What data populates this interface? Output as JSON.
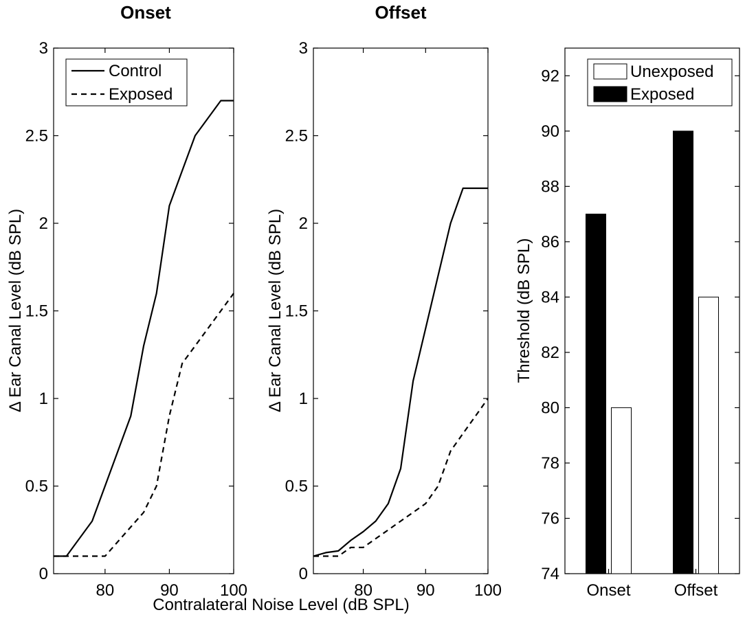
{
  "figure": {
    "shared_xlabel": "Contralateral Noise Level (dB SPL)"
  },
  "chart_data": [
    {
      "id": "onset",
      "type": "line",
      "title": "Onset",
      "xlabel": "",
      "ylabel": "Δ Ear Canal Level (dB SPL)",
      "xlim": [
        72,
        100
      ],
      "ylim": [
        0,
        3
      ],
      "xticks": [
        80,
        90,
        100
      ],
      "yticks": [
        0,
        0.5,
        1,
        1.5,
        2,
        2.5,
        3
      ],
      "ytick_labels": [
        "0",
        "0.5",
        "1",
        "1.5",
        "2",
        "2.5",
        "3"
      ],
      "legend": {
        "position": "top-left",
        "entries": [
          "Control",
          "Exposed"
        ]
      },
      "series": [
        {
          "name": "Control",
          "style": "solid",
          "x": [
            72,
            74,
            78,
            84,
            86,
            88,
            90,
            92,
            94,
            96,
            98,
            100
          ],
          "y": [
            0.1,
            0.1,
            0.3,
            0.9,
            1.3,
            1.6,
            2.1,
            2.3,
            2.5,
            2.6,
            2.7,
            2.7
          ]
        },
        {
          "name": "Exposed",
          "style": "dashed",
          "x": [
            72,
            80,
            86,
            88,
            90,
            92,
            94,
            96,
            98,
            100
          ],
          "y": [
            0.1,
            0.1,
            0.35,
            0.5,
            0.9,
            1.2,
            1.3,
            1.4,
            1.5,
            1.6
          ]
        }
      ]
    },
    {
      "id": "offset",
      "type": "line",
      "title": "Offset",
      "xlabel": "",
      "ylabel": "Δ Ear Canal Level (dB SPL)",
      "xlim": [
        72,
        100
      ],
      "ylim": [
        0,
        3
      ],
      "xticks": [
        80,
        90,
        100
      ],
      "yticks": [
        0,
        0.5,
        1,
        1.5,
        2,
        2.5,
        3
      ],
      "ytick_labels": [
        "0",
        "0.5",
        "1",
        "1.5",
        "2",
        "2.5",
        "3"
      ],
      "series": [
        {
          "name": "Control",
          "style": "solid",
          "x": [
            72,
            74,
            76,
            78,
            80,
            82,
            84,
            86,
            88,
            90,
            92,
            94,
            96,
            98,
            100
          ],
          "y": [
            0.1,
            0.12,
            0.13,
            0.19,
            0.24,
            0.3,
            0.4,
            0.6,
            1.1,
            1.4,
            1.7,
            2.0,
            2.2,
            2.2,
            2.2
          ]
        },
        {
          "name": "Exposed",
          "style": "dashed",
          "x": [
            72,
            74,
            76,
            78,
            80,
            82,
            84,
            86,
            88,
            90,
            92,
            94,
            96,
            98,
            100
          ],
          "y": [
            0.1,
            0.1,
            0.1,
            0.15,
            0.15,
            0.2,
            0.25,
            0.3,
            0.35,
            0.4,
            0.5,
            0.7,
            0.8,
            0.9,
            1.0
          ]
        }
      ]
    },
    {
      "id": "threshold",
      "type": "bar",
      "title": "",
      "xlabel": "",
      "ylabel": "Threshold (dB SPL)",
      "categories": [
        "Onset",
        "Offset"
      ],
      "ylim": [
        74,
        93
      ],
      "yticks": [
        74,
        76,
        78,
        80,
        82,
        84,
        86,
        88,
        90,
        92
      ],
      "legend": {
        "position": "top-right",
        "entries": [
          "Unexposed",
          "Exposed"
        ]
      },
      "series": [
        {
          "name": "Exposed",
          "color": "#000000",
          "values": [
            87,
            90
          ]
        },
        {
          "name": "Unexposed",
          "color": "#ffffff",
          "values": [
            80,
            84
          ]
        }
      ]
    }
  ]
}
